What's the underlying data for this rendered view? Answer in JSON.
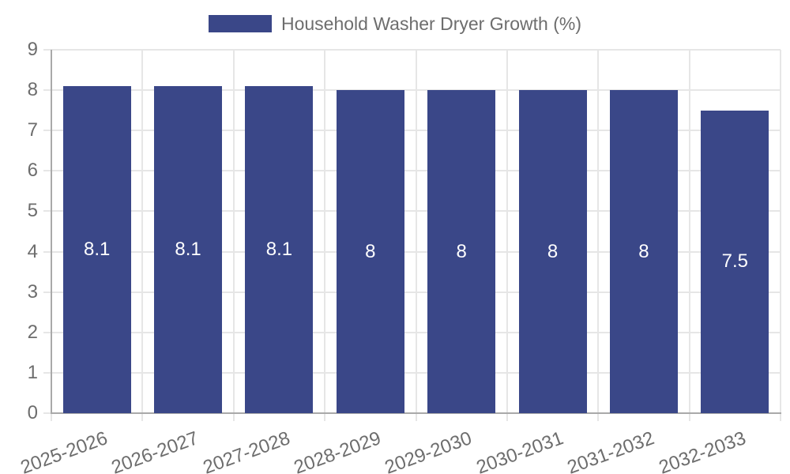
{
  "chart_data": {
    "type": "bar",
    "title": "Household Washer Dryer Growth (%)",
    "legend_label": "Household Washer Dryer Growth (%)",
    "legend_position": "top",
    "categories": [
      "2025-2026",
      "2026-2027",
      "2027-2028",
      "2028-2029",
      "2029-2030",
      "2030-2031",
      "2031-2032",
      "2032-2033"
    ],
    "values": [
      8.1,
      8.1,
      8.1,
      8,
      8,
      8,
      8,
      7.5
    ],
    "value_labels": [
      "8.1",
      "8.1",
      "8.1",
      "8",
      "8",
      "8",
      "8",
      "7.5"
    ],
    "xlabel": "",
    "ylabel": "",
    "ylim": [
      0,
      9
    ],
    "yticks": [
      0,
      1,
      2,
      3,
      4,
      5,
      6,
      7,
      8,
      9
    ],
    "grid": true,
    "x_label_rotation_deg": -20,
    "colors": {
      "bar": "#3a4788",
      "bar_label": "#ffffff",
      "tick_text": "#6d6d6d",
      "legend_text": "#6d6d6d",
      "gridline": "#e6e6e6",
      "axis": "#a9a9a9",
      "background": "#ffffff"
    }
  }
}
